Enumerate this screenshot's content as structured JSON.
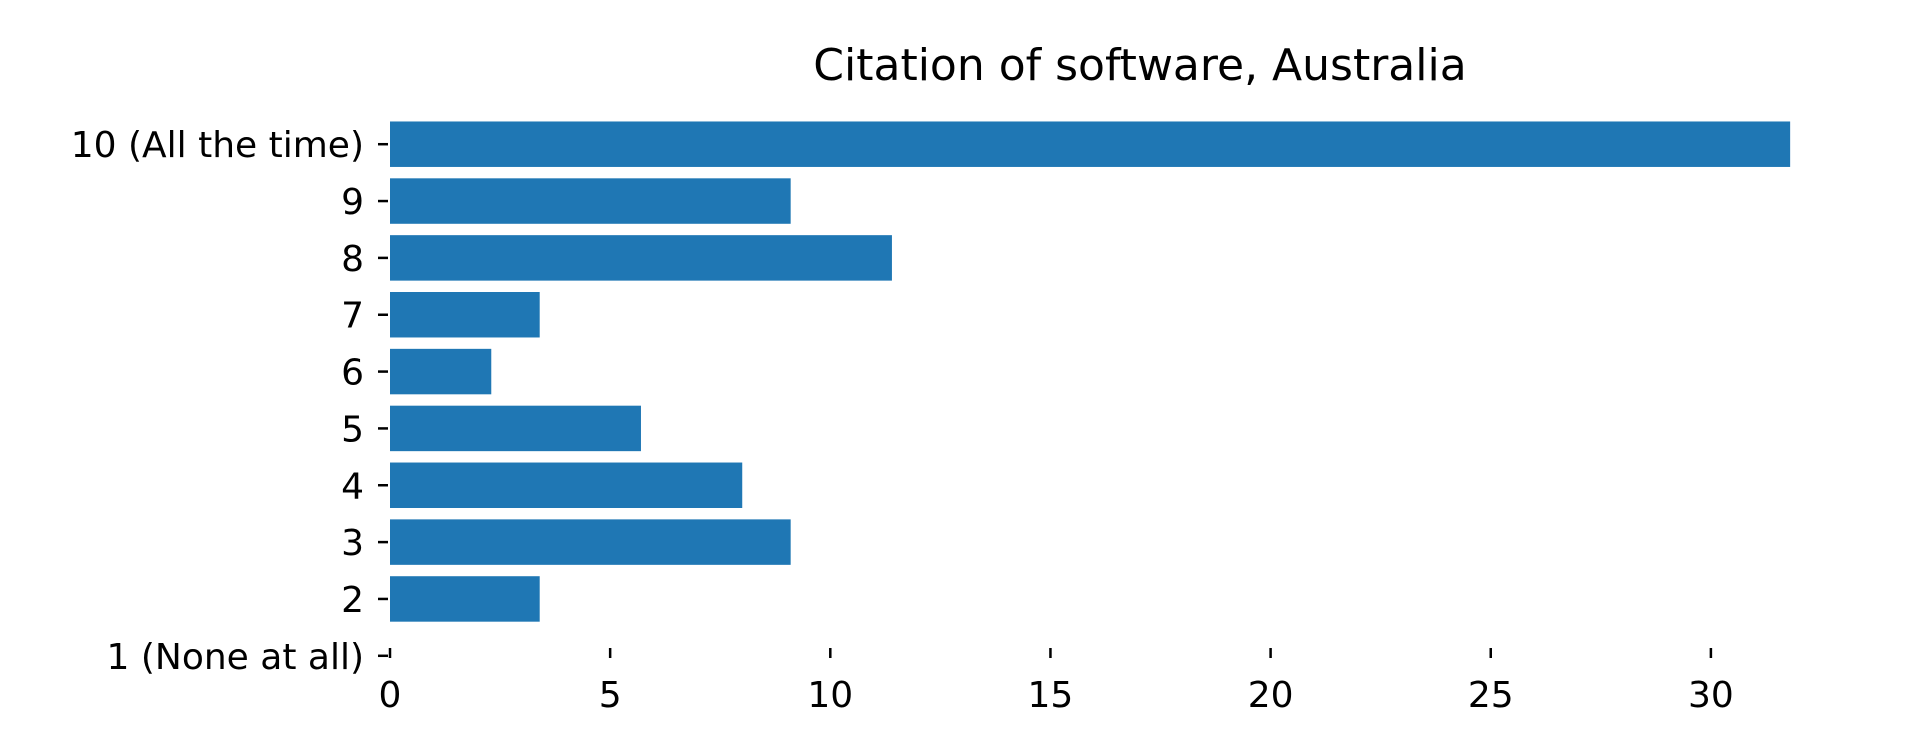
{
  "chart_data": {
    "type": "bar",
    "orientation": "horizontal",
    "title": "Citation of software, Australia",
    "xlabel": "",
    "ylabel": "",
    "categories": [
      "1 (None at all)",
      "2",
      "3",
      "4",
      "5",
      "6",
      "7",
      "8",
      "9",
      "10 (All the time)"
    ],
    "values": [
      0,
      3.4,
      9.1,
      8.0,
      5.7,
      2.3,
      3.4,
      11.4,
      9.1,
      31.8
    ],
    "xlim": [
      0,
      33.5
    ],
    "xticks": [
      0,
      5,
      10,
      15,
      20,
      25,
      30
    ],
    "bar_color": "#1f77b4",
    "grid": false,
    "legend": "none"
  }
}
